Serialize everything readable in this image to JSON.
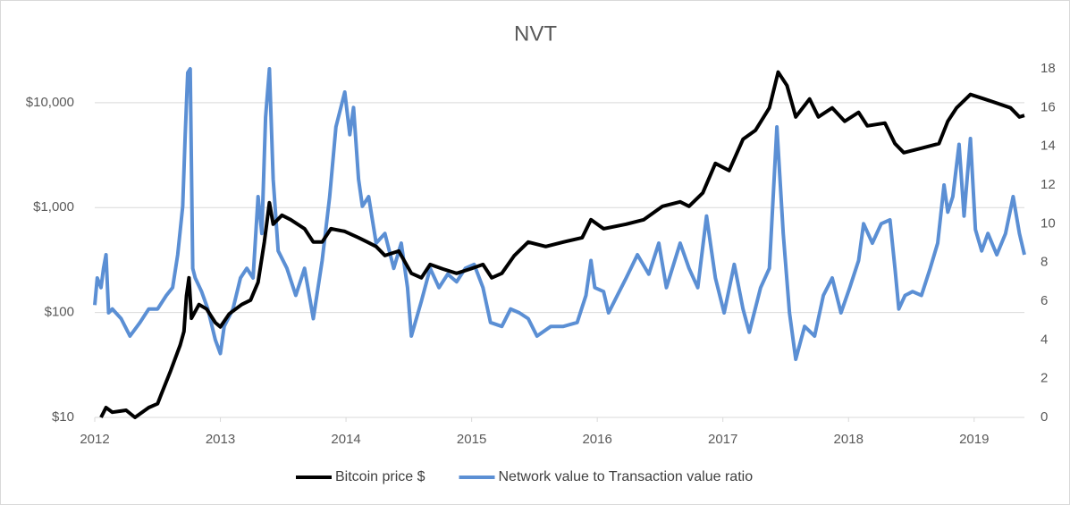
{
  "chart_data": {
    "type": "line",
    "title": "NVT",
    "xlim": [
      2012,
      2019.4
    ],
    "xticks": [
      2012,
      2013,
      2014,
      2015,
      2016,
      2017,
      2018,
      2019
    ],
    "ylim": [
      10,
      21000
    ],
    "y_log": true,
    "yticks": [
      {
        "value": 10,
        "label": "$10"
      },
      {
        "value": 100,
        "label": "$100"
      },
      {
        "value": 1000,
        "label": "$1,000"
      },
      {
        "value": 10000,
        "label": "$10,000"
      }
    ],
    "y2lim": [
      0,
      18
    ],
    "y2ticks": [
      0,
      2,
      4,
      6,
      8,
      10,
      12,
      14,
      16,
      18
    ],
    "grid": true,
    "legend": "bottom",
    "series": [
      {
        "name": "Bitcoin price $",
        "color": "#000000",
        "x": [
          2012.05,
          2012.09,
          2012.14,
          2012.25,
          2012.32,
          2012.43,
          2012.5,
          2012.53,
          2012.6,
          2012.68,
          2012.71,
          2012.73,
          2012.75,
          2012.77,
          2012.83,
          2012.89,
          2012.96,
          2013.0,
          2013.07,
          2013.17,
          2013.24,
          2013.3,
          2013.35,
          2013.39,
          2013.42,
          2013.49,
          2013.56,
          2013.67,
          2013.74,
          2013.81,
          2013.88,
          2013.99,
          2014.1,
          2014.17,
          2014.24,
          2014.31,
          2014.42,
          2014.52,
          2014.6,
          2014.67,
          2014.77,
          2014.88,
          2014.99,
          2015.09,
          2015.16,
          2015.24,
          2015.34,
          2015.45,
          2015.59,
          2015.73,
          2015.88,
          2015.95,
          2016.05,
          2016.23,
          2016.37,
          2016.52,
          2016.66,
          2016.73,
          2016.84,
          2016.94,
          2017.05,
          2017.16,
          2017.26,
          2017.37,
          2017.44,
          2017.51,
          2017.58,
          2017.69,
          2017.76,
          2017.87,
          2017.97,
          2018.08,
          2018.15,
          2018.29,
          2018.37,
          2018.44,
          2018.58,
          2018.72,
          2018.79,
          2018.86,
          2018.97,
          2019.08,
          2019.18,
          2019.29,
          2019.36,
          2019.4
        ],
        "values": [
          10,
          12.4,
          11.2,
          11.7,
          10,
          12.4,
          13.5,
          16.7,
          27,
          49,
          66,
          144,
          214,
          88,
          119,
          108,
          80,
          73,
          97,
          119,
          131,
          194,
          469,
          1112,
          694,
          845,
          766,
          629,
          469,
          469,
          629,
          593,
          517,
          469,
          425,
          349,
          385,
          236,
          214,
          287,
          260,
          236,
          260,
          287,
          214,
          236,
          349,
          469,
          425,
          469,
          517,
          766,
          629,
          694,
          766,
          1028,
          1135,
          1028,
          1380,
          2636,
          2254,
          4480,
          5454,
          8913,
          19540,
          14550,
          7311,
          10840,
          7311,
          8913,
          6637,
          8075,
          6012,
          6383,
          4064,
          3337,
          3681,
          4064,
          6637,
          8913,
          11970,
          10840,
          9886,
          8913,
          7311,
          7550
        ]
      },
      {
        "name": "Network value to Transaction value ratio",
        "color": "#5b8fd4",
        "axis": "y2",
        "x": [
          2012.0,
          2012.02,
          2012.05,
          2012.07,
          2012.09,
          2012.11,
          2012.14,
          2012.21,
          2012.28,
          2012.36,
          2012.43,
          2012.5,
          2012.57,
          2012.62,
          2012.66,
          2012.7,
          2012.72,
          2012.74,
          2012.76,
          2012.78,
          2012.8,
          2012.85,
          2012.9,
          2012.96,
          2013.0,
          2013.03,
          2013.1,
          2013.16,
          2013.21,
          2013.26,
          2013.3,
          2013.33,
          2013.36,
          2013.39,
          2013.42,
          2013.46,
          2013.53,
          2013.6,
          2013.67,
          2013.74,
          2013.81,
          2013.87,
          2013.92,
          2013.99,
          2014.03,
          2014.06,
          2014.1,
          2014.13,
          2014.18,
          2014.24,
          2014.31,
          2014.38,
          2014.44,
          2014.49,
          2014.52,
          2014.6,
          2014.67,
          2014.74,
          2014.81,
          2014.88,
          2014.95,
          2015.02,
          2015.09,
          2015.15,
          2015.24,
          2015.31,
          2015.38,
          2015.45,
          2015.52,
          2015.63,
          2015.73,
          2015.84,
          2015.91,
          2015.95,
          2015.98,
          2016.05,
          2016.09,
          2016.16,
          2016.23,
          2016.32,
          2016.41,
          2016.49,
          2016.55,
          2016.66,
          2016.73,
          2016.8,
          2016.87,
          2016.94,
          2017.01,
          2017.09,
          2017.16,
          2017.21,
          2017.3,
          2017.37,
          2017.43,
          2017.48,
          2017.53,
          2017.58,
          2017.65,
          2017.73,
          2017.8,
          2017.87,
          2017.94,
          2018.01,
          2018.08,
          2018.12,
          2018.19,
          2018.26,
          2018.33,
          2018.37,
          2018.4,
          2018.45,
          2018.51,
          2018.58,
          2018.65,
          2018.71,
          2018.76,
          2018.79,
          2018.83,
          2018.88,
          2018.92,
          2018.97,
          2019.01,
          2019.06,
          2019.11,
          2019.18,
          2019.25,
          2019.31,
          2019.36,
          2019.4
        ],
        "values": [
          5.8,
          7.2,
          6.7,
          7.7,
          8.4,
          5.4,
          5.6,
          5.1,
          4.2,
          4.9,
          5.6,
          5.6,
          6.3,
          6.7,
          8.4,
          10.9,
          14.6,
          17.8,
          18,
          7.7,
          7.2,
          6.5,
          5.6,
          4.0,
          3.3,
          4.7,
          5.6,
          7.2,
          7.7,
          7.2,
          11.4,
          9.5,
          15.5,
          18,
          12.3,
          8.6,
          7.7,
          6.3,
          7.7,
          5.1,
          8.1,
          11.4,
          15.0,
          16.8,
          14.6,
          16.0,
          12.3,
          10.9,
          11.4,
          9.0,
          9.5,
          7.7,
          9.0,
          6.7,
          4.2,
          6.0,
          7.7,
          6.7,
          7.4,
          7.0,
          7.7,
          7.9,
          6.7,
          4.9,
          4.7,
          5.6,
          5.4,
          5.1,
          4.2,
          4.7,
          4.7,
          4.9,
          6.3,
          8.1,
          6.7,
          6.5,
          5.4,
          6.3,
          7.2,
          8.4,
          7.4,
          9.0,
          6.7,
          9.0,
          7.7,
          6.7,
          10.4,
          7.2,
          5.4,
          7.9,
          5.6,
          4.4,
          6.7,
          7.7,
          15.0,
          9.5,
          5.4,
          3.0,
          4.7,
          4.2,
          6.3,
          7.2,
          5.4,
          6.7,
          8.1,
          10.0,
          9.0,
          10.0,
          10.2,
          7.7,
          5.6,
          6.3,
          6.5,
          6.3,
          7.7,
          9.0,
          12.0,
          10.6,
          11.4,
          14.1,
          10.4,
          14.4,
          9.7,
          8.6,
          9.5,
          8.4,
          9.5,
          11.4,
          9.5,
          8.4
        ]
      }
    ]
  }
}
